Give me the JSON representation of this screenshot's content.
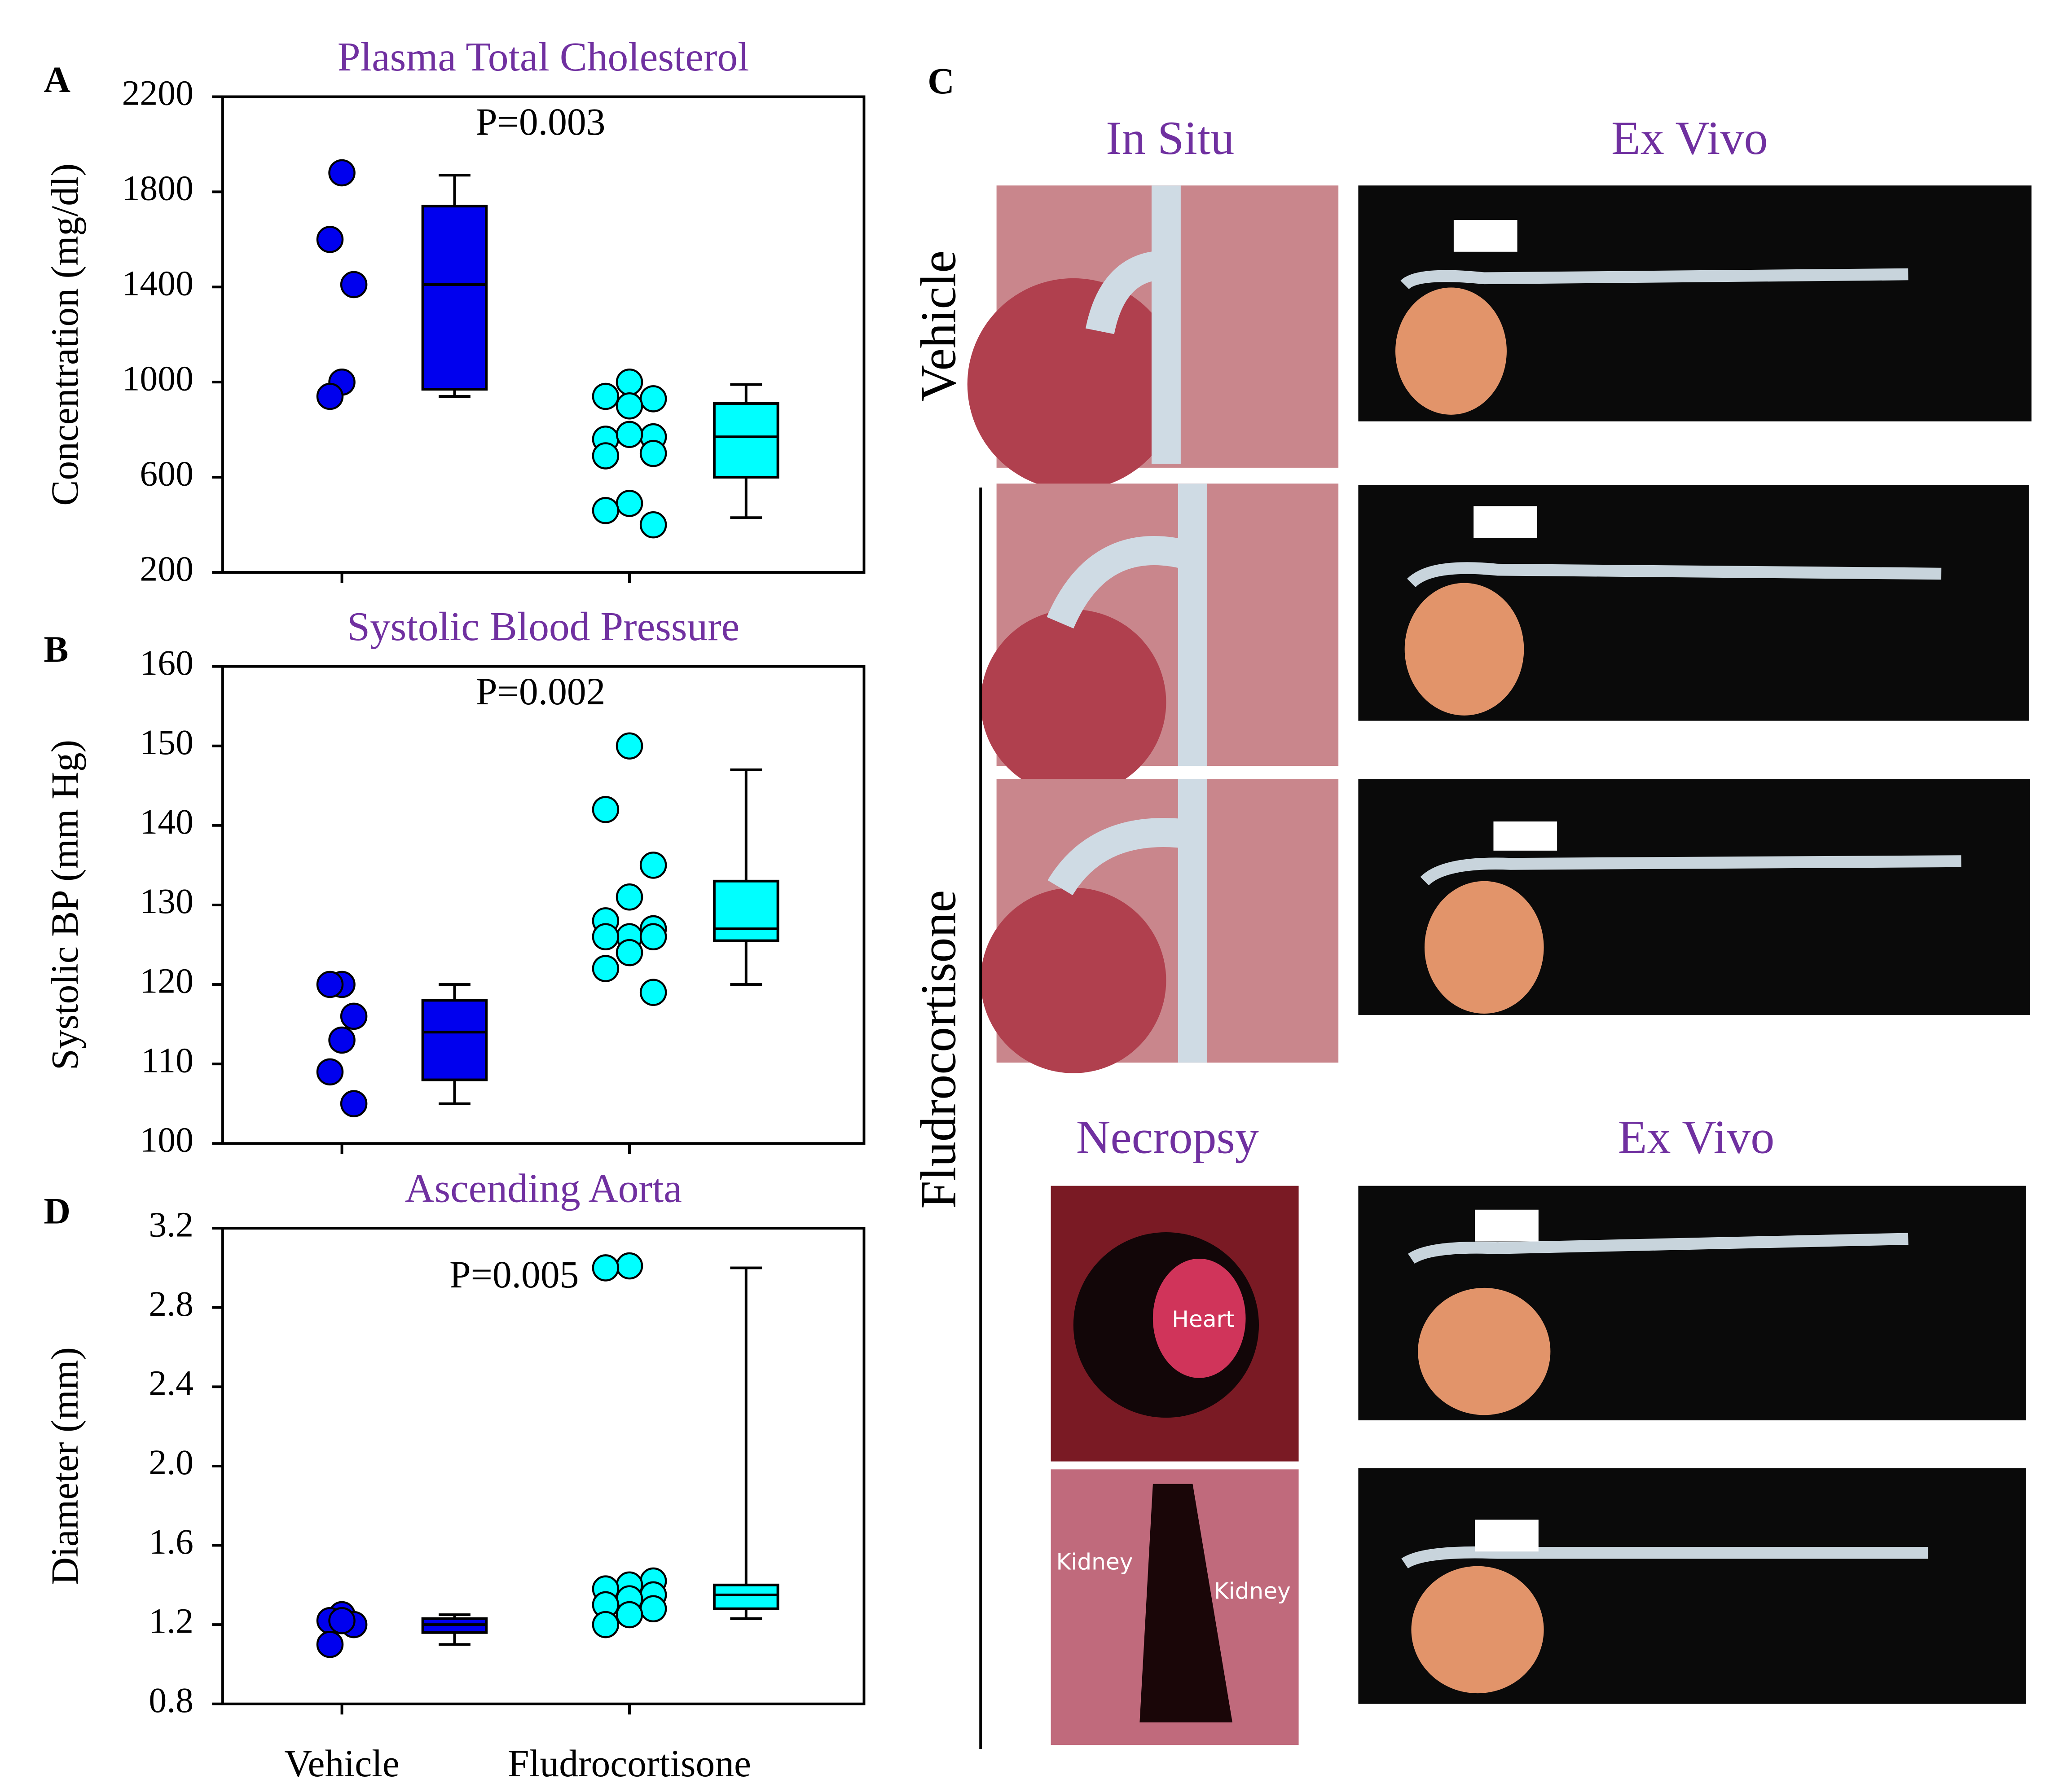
{
  "chart_data": [
    {
      "type": "box",
      "letter": "A",
      "title": "Plasma Total Cholesterol",
      "ylabel": "Concentration (mg/dl)",
      "annotation": "P=0.003",
      "ylim": [
        200,
        2200
      ],
      "yticks": [
        200,
        600,
        1000,
        1400,
        1800,
        2200
      ],
      "groups": [
        {
          "color": "#0000ee",
          "values": [
            1880,
            1600,
            1410,
            1000,
            940
          ],
          "box": {
            "whislo": 940,
            "q1": 970,
            "med": 1410,
            "q3": 1740,
            "whishi": 1870
          }
        },
        {
          "color": "#00ffff",
          "values": [
            1000,
            940,
            930,
            900,
            760,
            770,
            780,
            690,
            700,
            490,
            460,
            400
          ],
          "box": {
            "whislo": 430,
            "q1": 600,
            "med": 770,
            "q3": 910,
            "whishi": 990
          }
        }
      ]
    },
    {
      "type": "box",
      "letter": "B",
      "title": "Systolic Blood Pressure",
      "ylabel": "Systolic BP (mm Hg)",
      "annotation": "P=0.002",
      "ylim": [
        100,
        160
      ],
      "yticks": [
        100,
        110,
        120,
        130,
        140,
        150,
        160
      ],
      "groups": [
        {
          "color": "#0000ee",
          "values": [
            120,
            120,
            116,
            113,
            109,
            105
          ],
          "box": {
            "whislo": 105,
            "q1": 108,
            "med": 114,
            "q3": 118,
            "whishi": 120
          }
        },
        {
          "color": "#00ffff",
          "values": [
            150,
            142,
            135,
            131,
            128,
            127,
            126,
            126,
            126,
            124,
            122,
            119
          ],
          "box": {
            "whislo": 120,
            "q1": 125.5,
            "med": 127,
            "q3": 133,
            "whishi": 147
          }
        }
      ]
    },
    {
      "type": "box",
      "letter": "D",
      "title": "Ascending Aorta",
      "ylabel": "Diameter (mm)",
      "annotation": "P=0.005",
      "ylim": [
        0.8,
        3.2
      ],
      "yticks": [
        0.8,
        1.2,
        1.6,
        {
          "value": 2,
          "label": "2.0"
        },
        2.4,
        2.8,
        3.2
      ],
      "categories": [
        "Vehicle",
        "Fludrocortisone"
      ],
      "groups": [
        {
          "color": "#0000ee",
          "values": [
            1.25,
            1.22,
            1.2,
            1.22,
            1.1
          ],
          "box": {
            "whislo": 1.1,
            "q1": 1.16,
            "med": 1.2,
            "q3": 1.23,
            "whishi": 1.25
          }
        },
        {
          "color": "#00ffff",
          "values": [
            3.01,
            3,
            1.42,
            1.4,
            1.38,
            1.35,
            1.33,
            1.3,
            1.28,
            1.25,
            1.2
          ],
          "box": {
            "whislo": 1.23,
            "q1": 1.28,
            "med": 1.35,
            "q3": 1.4,
            "whishi": 3
          }
        }
      ]
    }
  ],
  "panel_c": {
    "letter": "C",
    "in_situ": "In Situ",
    "ex_vivo": "Ex Vivo",
    "vehicle": "Vehicle",
    "fludrocortisone": "Fludrocortisone",
    "necropsy": "Necropsy",
    "ex_vivo_2": "Ex Vivo",
    "heart": "Heart",
    "kidney_left": "Kidney",
    "kidney_right": "Kidney"
  }
}
